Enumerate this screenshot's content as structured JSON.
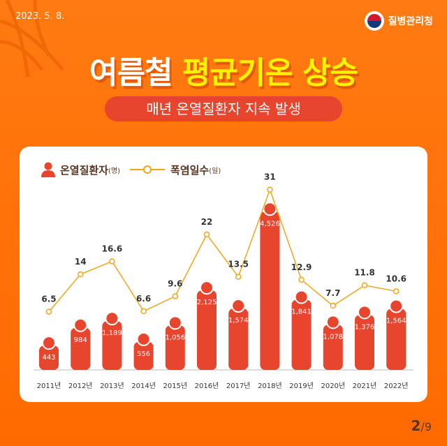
{
  "header": {
    "date": "2023. 5. 8.",
    "org": "질병관리청",
    "title_white": "여름철",
    "title_yellow": "평균기온 상승",
    "subtitle": "매년 온열질환자 지속 발생"
  },
  "legend": {
    "patients": "온열질환자",
    "patients_unit": "(명)",
    "heatwave": "폭염일수",
    "heatwave_unit": "(일)"
  },
  "page": {
    "current": "2",
    "total": "/9"
  },
  "colors": {
    "bar": "#e8452f",
    "line": "#f3a51a",
    "background": "#ff7010"
  },
  "chart_data": {
    "type": "bar+line",
    "categories": [
      "2011년",
      "2012년",
      "2013년",
      "2014년",
      "2015년",
      "2016년",
      "2017년",
      "2018년",
      "2019년",
      "2020년",
      "2021년",
      "2022년"
    ],
    "series": [
      {
        "name": "온열질환자(명)",
        "type": "bar",
        "values": [
          443,
          984,
          1189,
          556,
          1056,
          2125,
          1574,
          4526,
          1841,
          1078,
          1376,
          1564
        ],
        "labels": [
          "443",
          "984",
          "1,189",
          "556",
          "1,056",
          "2,125",
          "1,574",
          "4,526",
          "1,841",
          "1,078",
          "1,376",
          "1,564"
        ]
      },
      {
        "name": "폭염일수(일)",
        "type": "line",
        "values": [
          6.5,
          14,
          16.6,
          6.6,
          9.6,
          22,
          13.5,
          31,
          12.9,
          7.7,
          11.8,
          10.6
        ],
        "labels": [
          "6.5",
          "14",
          "16.6",
          "6.6",
          "9.6",
          "22",
          "13.5",
          "31",
          "12.9",
          "7.7",
          "11.8",
          "10.6"
        ]
      }
    ],
    "grid": false,
    "legend": "top-left"
  }
}
